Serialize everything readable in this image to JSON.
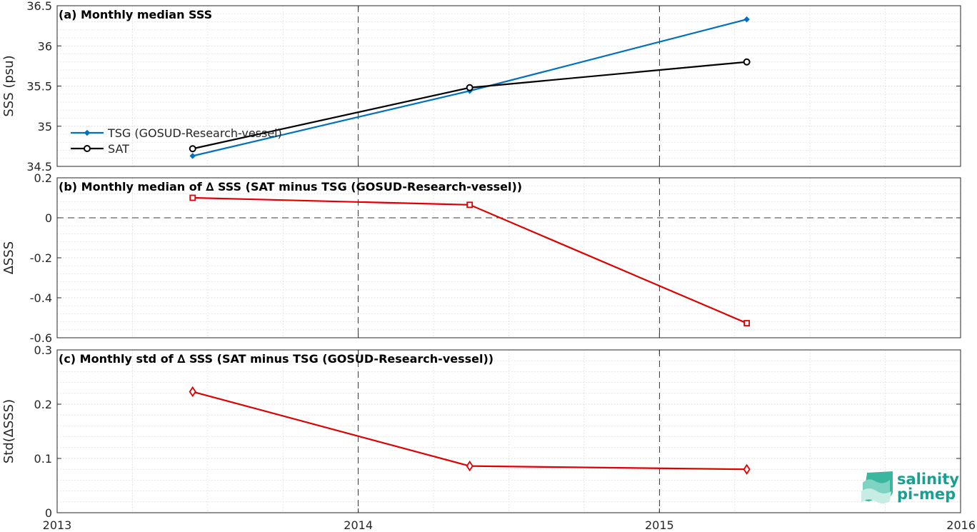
{
  "chart_data": [
    {
      "type": "line",
      "title": "(a) Monthly median SSS",
      "xlabel": "",
      "ylabel": "SSS (psu)",
      "xlim": [
        2013,
        2016
      ],
      "ylim": [
        34.5,
        36.5
      ],
      "x_ticks": [
        "2013",
        "2014",
        "2015",
        "2016"
      ],
      "y_ticks": [
        "34.5",
        "35",
        "35.5",
        "36",
        "36.5"
      ],
      "grid": true,
      "legend_position": "left",
      "series": [
        {
          "name": "TSG (GOSUD-Research-vessel)",
          "color": "#0072BD",
          "marker": "diamond-filled",
          "x": [
            2013.45,
            2014.37,
            2015.29
          ],
          "y": [
            34.63,
            35.44,
            36.33
          ]
        },
        {
          "name": "SAT",
          "color": "#000000",
          "marker": "circle",
          "x": [
            2013.45,
            2014.37,
            2015.29
          ],
          "y": [
            34.72,
            35.48,
            35.8
          ]
        }
      ]
    },
    {
      "type": "line",
      "title": "(b) Monthly median of ∆ SSS (SAT minus TSG (GOSUD-Research-vessel))",
      "xlabel": "",
      "ylabel": "∆SSS",
      "xlim": [
        2013,
        2016
      ],
      "ylim": [
        -0.6,
        0.2
      ],
      "y_ticks": [
        "-0.6",
        "-0.4",
        "-0.2",
        "0",
        "0.2"
      ],
      "zero_line": true,
      "grid": true,
      "series": [
        {
          "color": "#E00000",
          "marker": "square",
          "x": [
            2013.45,
            2014.37,
            2015.29
          ],
          "y": [
            0.1,
            0.065,
            -0.527
          ]
        }
      ]
    },
    {
      "type": "line",
      "title": "(c) Monthly std of ∆ SSS (SAT minus TSG (GOSUD-Research-vessel))",
      "xlabel": "",
      "ylabel": "Std(∆SSS)",
      "xlim": [
        2013,
        2016
      ],
      "ylim": [
        0,
        0.3
      ],
      "y_ticks": [
        "0",
        "0.1",
        "0.2",
        "0.3"
      ],
      "grid": true,
      "series": [
        {
          "color": "#E00000",
          "marker": "diamond",
          "x": [
            2013.45,
            2014.37,
            2015.29
          ],
          "y": [
            0.223,
            0.086,
            0.08
          ]
        }
      ]
    }
  ],
  "logo": {
    "line1": "salinity",
    "line2": "pi-mep"
  },
  "colors": {
    "axis": "#262626",
    "grid": "#d9d9d9",
    "accent": "#1a9e8f"
  }
}
